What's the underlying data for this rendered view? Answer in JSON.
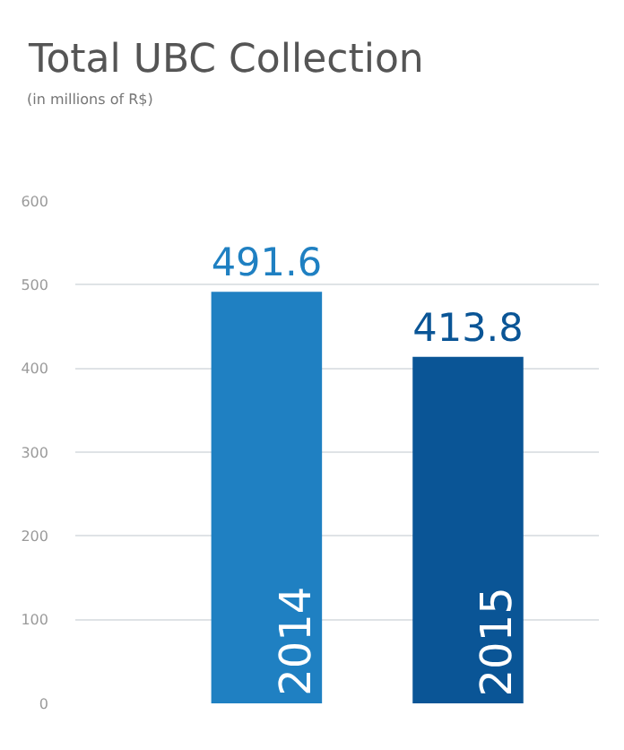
{
  "chart_data": {
    "type": "bar",
    "title": "Total UBC Collection",
    "subtitle": "(in millions of R$)",
    "categories": [
      "2014",
      "2015"
    ],
    "values": [
      491.6,
      413.8
    ],
    "colors": [
      "#1f80c2",
      "#0a5596"
    ],
    "data_labels": true,
    "ylim": [
      0,
      600
    ],
    "yticks": [
      0,
      100,
      200,
      300,
      400,
      500,
      600
    ],
    "grid": "y"
  }
}
